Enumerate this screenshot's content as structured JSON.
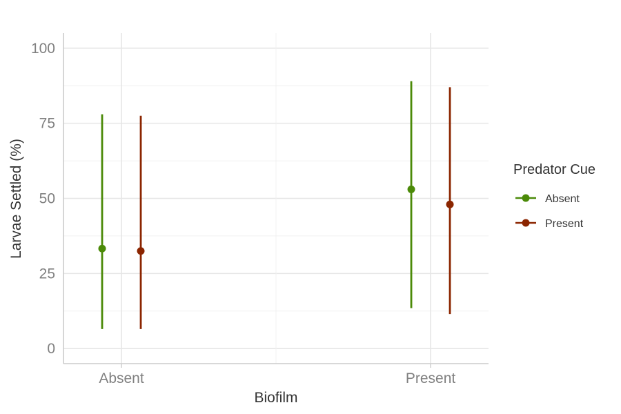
{
  "chart_data": {
    "type": "scatter",
    "title": "",
    "xlabel": "Biofilm",
    "ylabel": "Larvae Settled (%)",
    "categories": [
      "Absent",
      "Present"
    ],
    "ylim": [
      -5,
      105
    ],
    "yticks": [
      "0",
      "25",
      "50",
      "75",
      "100"
    ],
    "grid": true,
    "legend": {
      "title": "Predator Cue",
      "position": "right"
    },
    "series": [
      {
        "name": "Absent",
        "color": "#4b8a08",
        "points": [
          {
            "category": "Absent",
            "y": 33.3,
            "lower": 6.5,
            "upper": 78
          },
          {
            "category": "Present",
            "y": 53,
            "lower": 13.5,
            "upper": 89
          }
        ]
      },
      {
        "name": "Present",
        "color": "#8b2500",
        "points": [
          {
            "category": "Absent",
            "y": 32.5,
            "lower": 6.5,
            "upper": 77.5
          },
          {
            "category": "Present",
            "y": 48,
            "lower": 11.5,
            "upper": 87
          }
        ]
      }
    ]
  }
}
